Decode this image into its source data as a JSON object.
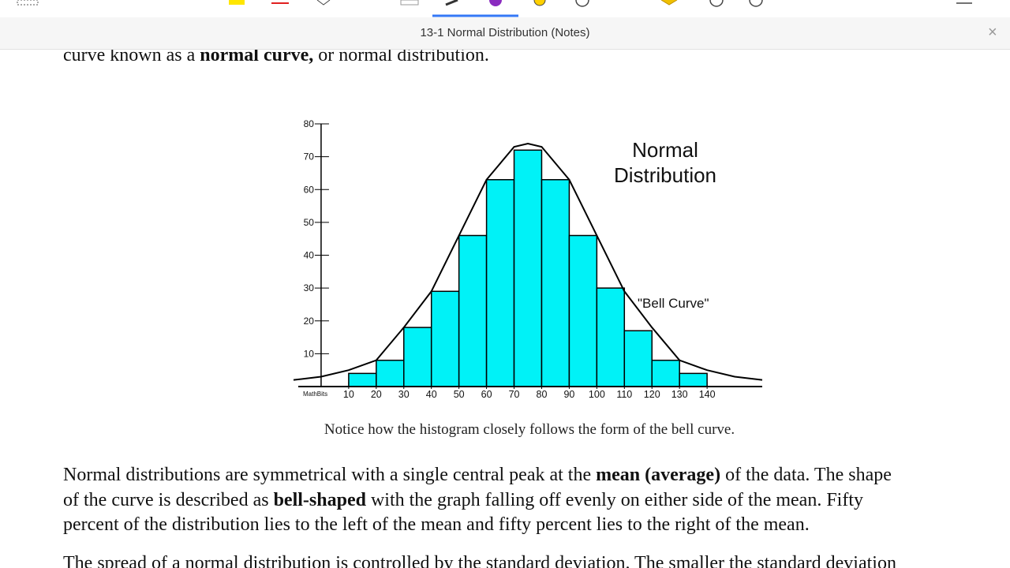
{
  "window": {
    "title": "13-1 Normal Distribution (Notes)",
    "close": "×"
  },
  "document": {
    "top_line": [
      {
        "text": "curve known as a ",
        "bold": false
      },
      {
        "text": "normal curve,",
        "bold": true
      },
      {
        "text": " or normal distribution.",
        "bold": false
      }
    ],
    "paragraph": [
      [
        {
          "text": "Normal distributions are symmetrical with a single central peak at the ",
          "bold": false
        },
        {
          "text": "mean (average)",
          "bold": true
        },
        {
          "text": " of the data.  The shape",
          "bold": false
        }
      ],
      [
        {
          "text": "of the curve is described as ",
          "bold": false
        },
        {
          "text": "bell-shaped",
          "bold": true
        },
        {
          "text": " with the graph falling off evenly on either side of the mean.  Fifty",
          "bold": false
        }
      ],
      [
        {
          "text": "percent of the distribution lies to the left of the mean and fifty percent lies to the right of the mean.",
          "bold": false
        }
      ]
    ],
    "bottom_line": [
      {
        "text": "The spread of a normal distribution is controlled by the standard deviation.  The smaller the standard deviation",
        "bold": false
      }
    ]
  },
  "chart_data": {
    "type": "histogram",
    "title_lines": [
      "Normal",
      "Distribution"
    ],
    "curve_label": "\"Bell Curve\"",
    "source": "MathBits",
    "caption": "Notice how the histogram closely follows the form of the bell curve.",
    "bins": [
      10,
      20,
      30,
      40,
      50,
      60,
      70,
      80,
      90,
      100,
      110,
      120,
      130,
      140
    ],
    "values": [
      4,
      8,
      18,
      29,
      46,
      63,
      72,
      63,
      46,
      30,
      17,
      8,
      4
    ],
    "color": "#00f2f7",
    "curve": {
      "x": [
        -10,
        0,
        10,
        20,
        30,
        40,
        50,
        60,
        70,
        75,
        80,
        90,
        100,
        110,
        120,
        130,
        140,
        150,
        160
      ],
      "values": [
        2,
        3,
        5,
        8,
        18,
        29,
        46,
        63,
        73,
        74,
        73,
        63,
        46,
        29,
        18,
        8,
        5,
        3,
        2
      ],
      "color": "#000000"
    },
    "xlim": [
      -10,
      160
    ],
    "xticks": [
      10,
      20,
      30,
      40,
      50,
      60,
      70,
      80,
      90,
      100,
      110,
      120,
      130,
      140
    ],
    "ylim": [
      0,
      80
    ],
    "yticks": [
      10,
      20,
      30,
      40,
      50,
      60,
      70,
      80
    ]
  }
}
